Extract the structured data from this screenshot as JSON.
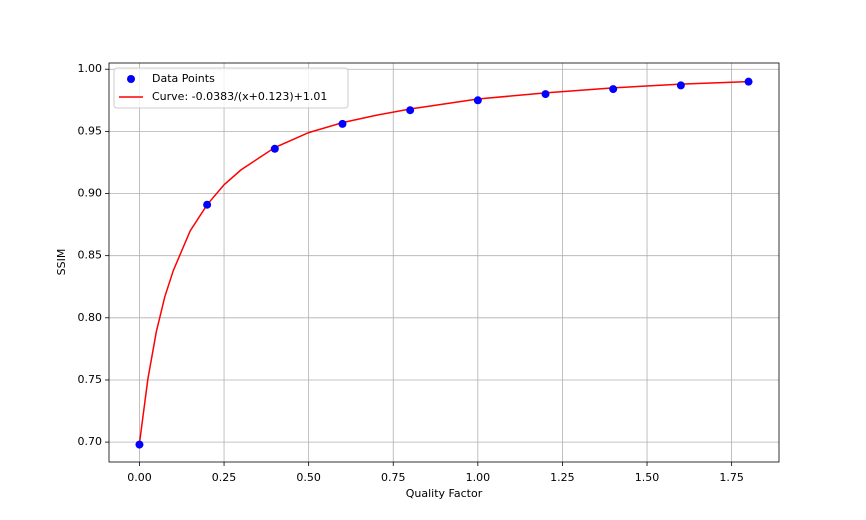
{
  "chart_data": {
    "type": "scatter",
    "xlabel": "Quality Factor",
    "ylabel": "SSIM",
    "xlim": [
      -0.09,
      1.89
    ],
    "ylim": [
      0.684,
      1.005
    ],
    "xticks": [
      {
        "value": 0,
        "label": "0.00"
      },
      {
        "value": 0.25,
        "label": "0.25"
      },
      {
        "value": 0.5,
        "label": "0.50"
      },
      {
        "value": 0.75,
        "label": "0.75"
      },
      {
        "value": 1,
        "label": "1.00"
      },
      {
        "value": 1.25,
        "label": "1.25"
      },
      {
        "value": 1.5,
        "label": "1.50"
      },
      {
        "value": 1.75,
        "label": "1.75"
      }
    ],
    "yticks": [
      {
        "value": 0.7,
        "label": "0.70"
      },
      0.75,
      {
        "value": 0.8,
        "label": "0.80"
      },
      0.85,
      {
        "value": 0.9,
        "label": "0.90"
      },
      0.95,
      {
        "value": 1,
        "label": "1.00"
      }
    ],
    "grid": true,
    "legend": "upper left",
    "series": [
      {
        "name": "Data Points",
        "type": "scatter",
        "color": "#0000ff",
        "x": [
          0,
          0.2,
          0.4,
          0.6,
          0.8,
          1.0,
          1.2,
          1.4,
          1.6,
          1.8
        ],
        "values": [
          0.698,
          0.891,
          0.936,
          0.956,
          0.967,
          0.975,
          0.98,
          0.984,
          0.987,
          0.99
        ]
      },
      {
        "name": "Curve: -0.0383/(x+0.123)+1.01",
        "type": "line",
        "color": "#ff0000",
        "x": [
          0,
          0.025,
          0.05,
          0.075,
          0.1,
          0.15,
          0.2,
          0.25,
          0.3,
          0.4,
          0.5,
          0.6,
          0.7,
          0.8,
          1.0,
          1.2,
          1.4,
          1.6,
          1.8
        ],
        "values": [
          0.699,
          0.751,
          0.789,
          0.817,
          0.838,
          0.87,
          0.891,
          0.907,
          0.919,
          0.937,
          0.949,
          0.957,
          0.963,
          0.968,
          0.976,
          0.981,
          0.985,
          0.988,
          0.99
        ]
      }
    ]
  }
}
